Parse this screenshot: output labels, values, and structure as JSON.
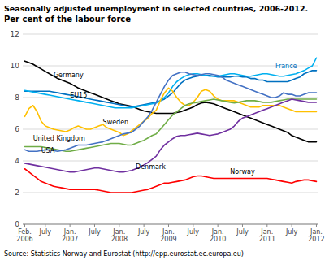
{
  "chart_data": {
    "type": "line",
    "title": "Seasonally adjusted unemployment in selected countries, 2006-2012.",
    "subtitle": "Per cent of the labour force",
    "source": "Source: Statistics Norway and Eurostat (http://epp.eurostat.ec.europa.eu)",
    "categories": [
      "Feb.\n2006",
      null,
      null,
      null,
      null,
      "July",
      null,
      null,
      null,
      null,
      null,
      "Jan.\n2007",
      null,
      null,
      null,
      null,
      null,
      "July",
      null,
      null,
      null,
      null,
      null,
      "Jan.\n2008",
      null,
      null,
      null,
      null,
      null,
      "July",
      null,
      null,
      null,
      null,
      null,
      "Jan.\n2009",
      null,
      null,
      null,
      null,
      null,
      "July",
      null,
      null,
      null,
      null,
      null,
      "Jan.\n2010",
      null,
      null,
      null,
      null,
      null,
      "July",
      null,
      null,
      null,
      null,
      null,
      "Jan.\n2011",
      null,
      null,
      null,
      null,
      null,
      "July",
      null,
      null,
      null,
      null,
      null,
      "Jan.\n2012"
    ],
    "ylim": [
      0,
      12
    ],
    "yticks": [
      0,
      2,
      4,
      6,
      8,
      10,
      12
    ],
    "grid": true,
    "series": [
      {
        "name": "Germany",
        "color": "#000000",
        "values": [
          10.3,
          10.2,
          10.1,
          9.95,
          9.8,
          9.65,
          9.5,
          9.35,
          9.2,
          9.1,
          9.0,
          8.9,
          8.75,
          8.6,
          8.5,
          8.4,
          8.3,
          8.2,
          8.1,
          8.0,
          7.9,
          7.8,
          7.7,
          7.6,
          7.55,
          7.5,
          7.45,
          7.35,
          7.25,
          7.15,
          7.1,
          7.05,
          7.0,
          7.0,
          7.0,
          7.0,
          7.0,
          7.05,
          7.1,
          7.2,
          7.3,
          7.4,
          7.55,
          7.65,
          7.7,
          7.65,
          7.6,
          7.5,
          7.4,
          7.3,
          7.2,
          7.1,
          7.0,
          6.9,
          6.8,
          6.7,
          6.6,
          6.5,
          6.4,
          6.3,
          6.2,
          6.1,
          6.0,
          5.9,
          5.8,
          5.6,
          5.5,
          5.4,
          5.3,
          5.2,
          5.2,
          5.2
        ]
      },
      {
        "name": "France",
        "color": "#0070C0",
        "values": [
          8.4,
          8.4,
          8.4,
          8.4,
          8.4,
          8.4,
          8.4,
          8.35,
          8.3,
          8.25,
          8.2,
          8.15,
          8.1,
          8.05,
          8.0,
          7.95,
          7.9,
          7.85,
          7.8,
          7.75,
          7.7,
          7.65,
          7.6,
          7.55,
          7.5,
          7.45,
          7.4,
          7.45,
          7.5,
          7.55,
          7.6,
          7.65,
          7.7,
          7.8,
          7.9,
          8.1,
          8.3,
          8.6,
          8.9,
          9.1,
          9.2,
          9.3,
          9.35,
          9.4,
          9.4,
          9.4,
          9.35,
          9.3,
          9.3,
          9.3,
          9.3,
          9.35,
          9.35,
          9.3,
          9.3,
          9.2,
          9.2,
          9.1,
          9.1,
          9.0,
          9.0,
          9.0,
          9.0,
          9.0,
          9.0,
          9.1,
          9.2,
          9.3,
          9.5,
          9.6,
          9.7,
          9.7
        ]
      },
      {
        "name": "EU15",
        "color": "#00B0F0",
        "values": [
          8.45,
          8.4,
          8.35,
          8.3,
          8.25,
          8.2,
          8.15,
          8.1,
          8.05,
          8.0,
          7.95,
          7.9,
          7.85,
          7.8,
          7.75,
          7.7,
          7.65,
          7.6,
          7.55,
          7.5,
          7.45,
          7.4,
          7.35,
          7.35,
          7.35,
          7.35,
          7.35,
          7.4,
          7.45,
          7.5,
          7.55,
          7.6,
          7.65,
          7.8,
          8.0,
          8.3,
          8.7,
          9.0,
          9.2,
          9.35,
          9.45,
          9.5,
          9.5,
          9.45,
          9.4,
          9.35,
          9.35,
          9.35,
          9.4,
          9.45,
          9.5,
          9.5,
          9.45,
          9.4,
          9.35,
          9.35,
          9.4,
          9.45,
          9.5,
          9.5,
          9.45,
          9.4,
          9.35,
          9.35,
          9.4,
          9.45,
          9.5,
          9.6,
          9.7,
          9.85,
          10.0,
          10.5
        ]
      },
      {
        "name": "Sweden",
        "color": "#FFC000",
        "values": [
          6.8,
          7.3,
          7.5,
          7.1,
          6.5,
          6.2,
          6.1,
          6.0,
          5.95,
          5.9,
          5.85,
          5.95,
          6.1,
          6.2,
          6.1,
          6.0,
          6.0,
          6.1,
          6.2,
          6.3,
          6.1,
          6.0,
          5.9,
          5.8,
          5.6,
          5.7,
          5.9,
          6.1,
          6.3,
          6.5,
          6.7,
          7.0,
          7.2,
          7.8,
          8.3,
          8.6,
          8.4,
          8.0,
          7.7,
          7.5,
          7.5,
          7.7,
          8.0,
          8.4,
          8.5,
          8.4,
          8.1,
          7.9,
          7.8,
          7.8,
          7.8,
          7.8,
          7.7,
          7.6,
          7.5,
          7.4,
          7.4,
          7.4,
          7.5,
          7.5,
          7.5,
          7.5,
          7.5,
          7.4,
          7.3,
          7.2,
          7.1,
          7.1,
          7.1,
          7.1,
          7.1,
          7.1
        ]
      },
      {
        "name": "United Kingdom",
        "color": "#70AD47",
        "values": [
          4.9,
          4.9,
          4.9,
          4.9,
          4.9,
          4.85,
          4.8,
          4.75,
          4.7,
          4.65,
          4.6,
          4.6,
          4.65,
          4.7,
          4.75,
          4.8,
          4.85,
          4.9,
          4.95,
          5.0,
          5.05,
          5.1,
          5.1,
          5.1,
          5.05,
          5.0,
          5.0,
          5.1,
          5.2,
          5.3,
          5.45,
          5.6,
          5.7,
          6.0,
          6.3,
          6.6,
          6.9,
          7.1,
          7.3,
          7.5,
          7.6,
          7.65,
          7.7,
          7.75,
          7.8,
          7.85,
          7.9,
          7.85,
          7.8,
          7.75,
          7.7,
          7.65,
          7.7,
          7.75,
          7.8,
          7.8,
          7.8,
          7.75,
          7.7,
          7.7,
          7.7,
          7.75,
          7.8,
          7.85,
          7.9,
          7.9,
          7.9,
          7.9,
          7.9,
          7.9,
          7.9,
          7.9
        ]
      },
      {
        "name": "USA",
        "color": "#4472C4",
        "values": [
          4.7,
          4.6,
          4.6,
          4.6,
          4.65,
          4.7,
          4.7,
          4.65,
          4.6,
          4.65,
          4.7,
          4.8,
          4.9,
          5.0,
          5.0,
          5.0,
          5.05,
          5.1,
          5.15,
          5.2,
          5.3,
          5.4,
          5.5,
          5.6,
          5.7,
          5.75,
          5.8,
          6.0,
          6.2,
          6.5,
          6.8,
          7.2,
          7.7,
          8.2,
          8.7,
          9.1,
          9.4,
          9.5,
          9.6,
          9.6,
          9.5,
          9.45,
          9.4,
          9.45,
          9.5,
          9.5,
          9.45,
          9.4,
          9.3,
          9.1,
          9.0,
          8.9,
          8.8,
          8.7,
          8.6,
          8.5,
          8.4,
          8.3,
          8.2,
          8.1,
          8.0,
          8.0,
          8.1,
          8.3,
          8.2,
          8.2,
          8.1,
          8.1,
          8.2,
          8.3,
          8.3,
          8.3
        ]
      },
      {
        "name": "Denmark",
        "color": "#7030A0",
        "values": [
          3.85,
          3.8,
          3.75,
          3.7,
          3.65,
          3.6,
          3.55,
          3.5,
          3.45,
          3.4,
          3.35,
          3.3,
          3.3,
          3.35,
          3.4,
          3.45,
          3.5,
          3.55,
          3.55,
          3.5,
          3.45,
          3.4,
          3.35,
          3.3,
          3.3,
          3.35,
          3.4,
          3.5,
          3.6,
          3.75,
          3.9,
          4.1,
          4.3,
          4.7,
          5.0,
          5.2,
          5.4,
          5.55,
          5.6,
          5.6,
          5.65,
          5.7,
          5.75,
          5.7,
          5.65,
          5.6,
          5.65,
          5.7,
          5.8,
          5.9,
          6.0,
          6.2,
          6.5,
          6.7,
          6.8,
          6.9,
          7.0,
          7.1,
          7.2,
          7.3,
          7.4,
          7.5,
          7.6,
          7.7,
          7.8,
          7.9,
          7.85,
          7.8,
          7.75,
          7.7,
          7.7,
          7.7
        ]
      },
      {
        "name": "Norway",
        "color": "#FF0000",
        "values": [
          3.5,
          3.3,
          3.1,
          2.9,
          2.7,
          2.6,
          2.5,
          2.4,
          2.35,
          2.3,
          2.25,
          2.2,
          2.2,
          2.2,
          2.2,
          2.2,
          2.2,
          2.2,
          2.15,
          2.1,
          2.05,
          2.0,
          2.0,
          2.0,
          2.0,
          2.0,
          2.0,
          2.05,
          2.1,
          2.15,
          2.2,
          2.3,
          2.4,
          2.5,
          2.6,
          2.6,
          2.65,
          2.7,
          2.75,
          2.8,
          2.9,
          3.0,
          3.05,
          3.05,
          3.0,
          2.95,
          2.9,
          2.9,
          2.9,
          2.9,
          2.9,
          2.9,
          2.9,
          2.9,
          2.9,
          2.9,
          2.9,
          2.9,
          2.9,
          2.9,
          2.85,
          2.8,
          2.75,
          2.7,
          2.65,
          2.6,
          2.7,
          2.75,
          2.8,
          2.8,
          2.75,
          2.7
        ]
      }
    ],
    "annotations": [
      {
        "text": "Germany",
        "x": 7,
        "y": 9.25
      },
      {
        "text": "EU15",
        "x": 11,
        "y": 7.95
      },
      {
        "text": "Sweden",
        "x": 19,
        "y": 6.25
      },
      {
        "text": "United Kingdom",
        "x": 2,
        "y": 5.25
      },
      {
        "text": "USA",
        "x": 4,
        "y": 4.45
      },
      {
        "text": "Denmark",
        "x": 27,
        "y": 3.45
      },
      {
        "text": "Norway",
        "x": 50,
        "y": 3.15
      },
      {
        "text": "France",
        "x": 61,
        "y": 9.8,
        "color": "#0070C0"
      }
    ]
  }
}
